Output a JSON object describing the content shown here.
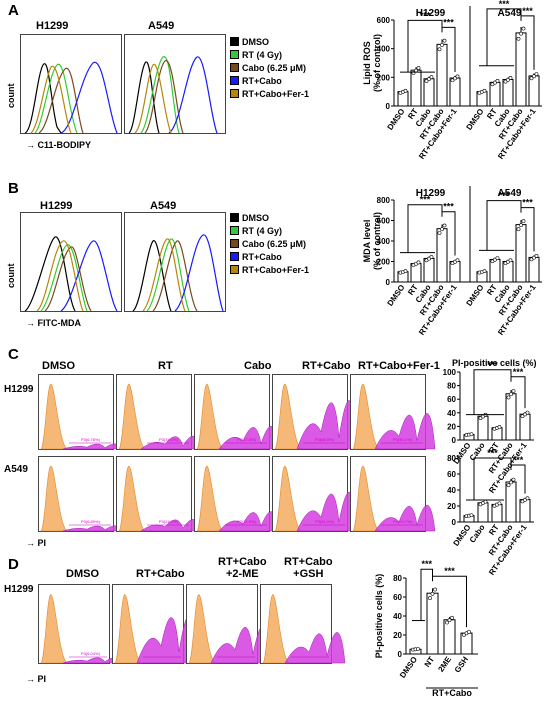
{
  "panels": {
    "A": {
      "letter": "A",
      "hist_titles": [
        "H1299",
        "A549"
      ],
      "xlabel": "C11-BODIPY",
      "ylabel": "count"
    },
    "B": {
      "letter": "B",
      "hist_titles": [
        "H1299",
        "A549"
      ],
      "xlabel": "FITC-MDA",
      "ylabel": "count"
    },
    "C": {
      "letter": "C",
      "col_titles": [
        "DMSO",
        "RT",
        "Cabo",
        "RT+Cabo",
        "RT+Cabo+Fer-1"
      ],
      "row_labels": [
        "H1299",
        "A549"
      ],
      "xlabel": "PI"
    },
    "D": {
      "letter": "D",
      "row_label": "H1299",
      "col_titles": [
        "DMSO",
        "RT+Cabo",
        "RT+Cabo\n+2-ME",
        "RT+Cabo\n+GSH"
      ],
      "xlabel": "PI"
    }
  },
  "legend": {
    "items": [
      {
        "label": "DMSO",
        "color": "#000000"
      },
      {
        "label": "RT (4 Gy)",
        "color": "#33cc33"
      },
      {
        "label": "Cabo (6.25 μM)",
        "color": "#7a4a1e"
      },
      {
        "label": "RT+Cabo",
        "color": "#1a1aff"
      },
      {
        "label": "RT+Cabo+Fer-1",
        "color": "#b8860b"
      }
    ]
  },
  "gate_labels": {
    "C_H1299": [
      "P3(6.76%)",
      "P3(34.0%)",
      "P3(17.8%)",
      "P3(68.5%)",
      "P3(40.1%)"
    ],
    "C_A549": [
      "P3(6.89%)",
      "P3(24.2%)",
      "P3(21.3%)",
      "P3(51.0%)",
      "P3(29.7%)"
    ],
    "D": [
      "P3(6.04%)",
      "",
      "",
      ""
    ]
  },
  "chart_data": [
    {
      "id": "A_lipid_ros",
      "type": "bar",
      "ylabel": "Lipid ROS\n(% of control)",
      "ylim": [
        0,
        600
      ],
      "yticks": [
        0,
        200,
        400,
        600
      ],
      "groups": [
        "H1299",
        "A549"
      ],
      "categories": [
        "DMSO",
        "RT",
        "Cabo",
        "RT+Cabo",
        "RT+Cabo+Fer-1"
      ],
      "series": [
        {
          "name": "H1299",
          "values": [
            100,
            250,
            190,
            430,
            195
          ]
        },
        {
          "name": "A549",
          "values": [
            100,
            165,
            185,
            510,
            210
          ]
        }
      ],
      "annotations": [
        "***",
        "***",
        "***",
        "***"
      ]
    },
    {
      "id": "B_mda",
      "type": "bar",
      "ylabel": "MDA level\n(% of control)",
      "ylim": [
        0,
        800
      ],
      "yticks": [
        0,
        200,
        400,
        600,
        800
      ],
      "groups": [
        "H1299",
        "A549"
      ],
      "categories": [
        "DMSO",
        "RT",
        "Cabo",
        "RT+Cabo",
        "RT+Cabo+Fer-1"
      ],
      "series": [
        {
          "name": "H1299",
          "values": [
            100,
            180,
            230,
            520,
            200
          ]
        },
        {
          "name": "A549",
          "values": [
            100,
            220,
            200,
            560,
            240
          ]
        }
      ],
      "annotations": [
        "***",
        "***",
        "***",
        "***"
      ]
    },
    {
      "id": "C_H1299",
      "type": "bar",
      "title": "PI-positive cells (%)",
      "ylim": [
        0,
        100
      ],
      "yticks": [
        0,
        20,
        40,
        60,
        80,
        100
      ],
      "categories": [
        "DMSO",
        "Cabo",
        "RT",
        "RT+Cabo",
        "RT+Cabo+Fer-1"
      ],
      "values": [
        8,
        35,
        18,
        68,
        38
      ],
      "annotations": [
        "***",
        "***"
      ]
    },
    {
      "id": "C_A549",
      "type": "bar",
      "ylim": [
        0,
        80
      ],
      "yticks": [
        0,
        20,
        40,
        60,
        80
      ],
      "categories": [
        "DMSO",
        "Cabo",
        "RT",
        "RT+Cabo",
        "RT+Cabo+Fer-1"
      ],
      "values": [
        8,
        24,
        22,
        50,
        28
      ],
      "annotations": [
        "***",
        "***"
      ]
    },
    {
      "id": "D_H1299",
      "type": "bar",
      "ylabel": "PI-positive cells (%)",
      "ylim": [
        0,
        80
      ],
      "yticks": [
        0,
        20,
        40,
        60,
        80
      ],
      "categories": [
        "DMSO",
        "NT",
        "2ME",
        "GSH"
      ],
      "group_label": "RT+Cabo",
      "values": [
        5,
        64,
        36,
        22
      ],
      "annotations": [
        "***",
        "***"
      ]
    }
  ]
}
